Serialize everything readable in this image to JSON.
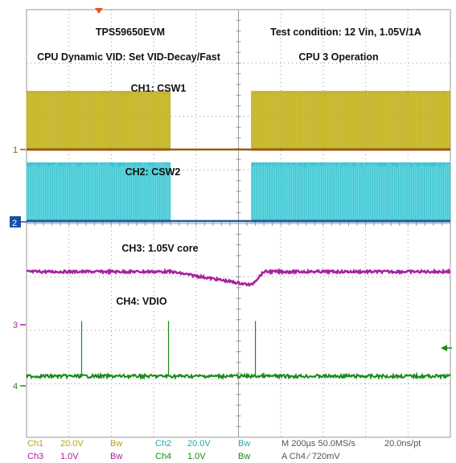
{
  "chart_data": {
    "type": "line",
    "grid": true,
    "annotations": {
      "device": "TPS59650EVM",
      "condition": "Test condition: 12 Vin, 1.05V/1A",
      "mode": "CPU Dynamic VID: Set VID-Decay/Fast",
      "operation": "CPU 3 Operation",
      "ch1": "CH1: CSW1",
      "ch2": "CH2: CSW2",
      "ch3": "CH3: 1.05V core",
      "ch4": "CH4: VDIO"
    },
    "channel_markers": [
      "1",
      "2",
      "3",
      "4"
    ],
    "x_divisions": 10,
    "y_divisions": 8,
    "series": [
      {
        "name": "CH1: CSW1",
        "color": "#b7a614",
        "baseline_color": "#9a5a12",
        "kind": "switching",
        "active_windows": [
          [
            0,
            3.4
          ],
          [
            5.3,
            10
          ]
        ],
        "level_div": 1.7
      },
      {
        "name": "CH2: CSW2",
        "color": "#1fb8c6",
        "baseline_color": "#1a5aa0",
        "kind": "switching",
        "active_windows": [
          [
            0,
            3.4
          ],
          [
            5.3,
            10
          ]
        ],
        "level_div": 1.7
      },
      {
        "name": "CH3: 1.05V core",
        "color": "#a820a0",
        "kind": "analog",
        "points": [
          [
            0,
            0
          ],
          [
            3.4,
            0
          ],
          [
            5.3,
            -0.25
          ],
          [
            5.6,
            0
          ],
          [
            10,
            0
          ]
        ]
      },
      {
        "name": "CH4: VDIO",
        "color": "#1a8a1a",
        "kind": "pulse",
        "pulses": [
          1.3,
          3.35,
          5.4
        ],
        "pulse_height_div": 1.6
      }
    ],
    "footer": {
      "ch1_label": "Ch1",
      "ch1_scale": "20.0V",
      "ch1_bw": "Bw",
      "ch2_label": "Ch2",
      "ch2_scale": "20.0V",
      "ch2_bw": "Bw",
      "ch3_label": "Ch3",
      "ch3_scale": "1.0V",
      "ch3_bw": "Bw",
      "ch4_label": "Ch4",
      "ch4_scale": "1.0V",
      "ch4_bw": "Bw",
      "timebase": "M 200µs 50.0MS/s",
      "resolution": "20.0ns/pt",
      "trigger": "A  Ch4  ⁄  720mV"
    },
    "colors": {
      "ch1": "#b7a614",
      "ch2": "#1fb8c6",
      "ch3": "#a820a0",
      "ch4": "#1a8a1a",
      "grid": "#9a9a9a",
      "trigger_marker": "#e8501a",
      "ch2_tag_bg": "#1a4fa8"
    }
  }
}
